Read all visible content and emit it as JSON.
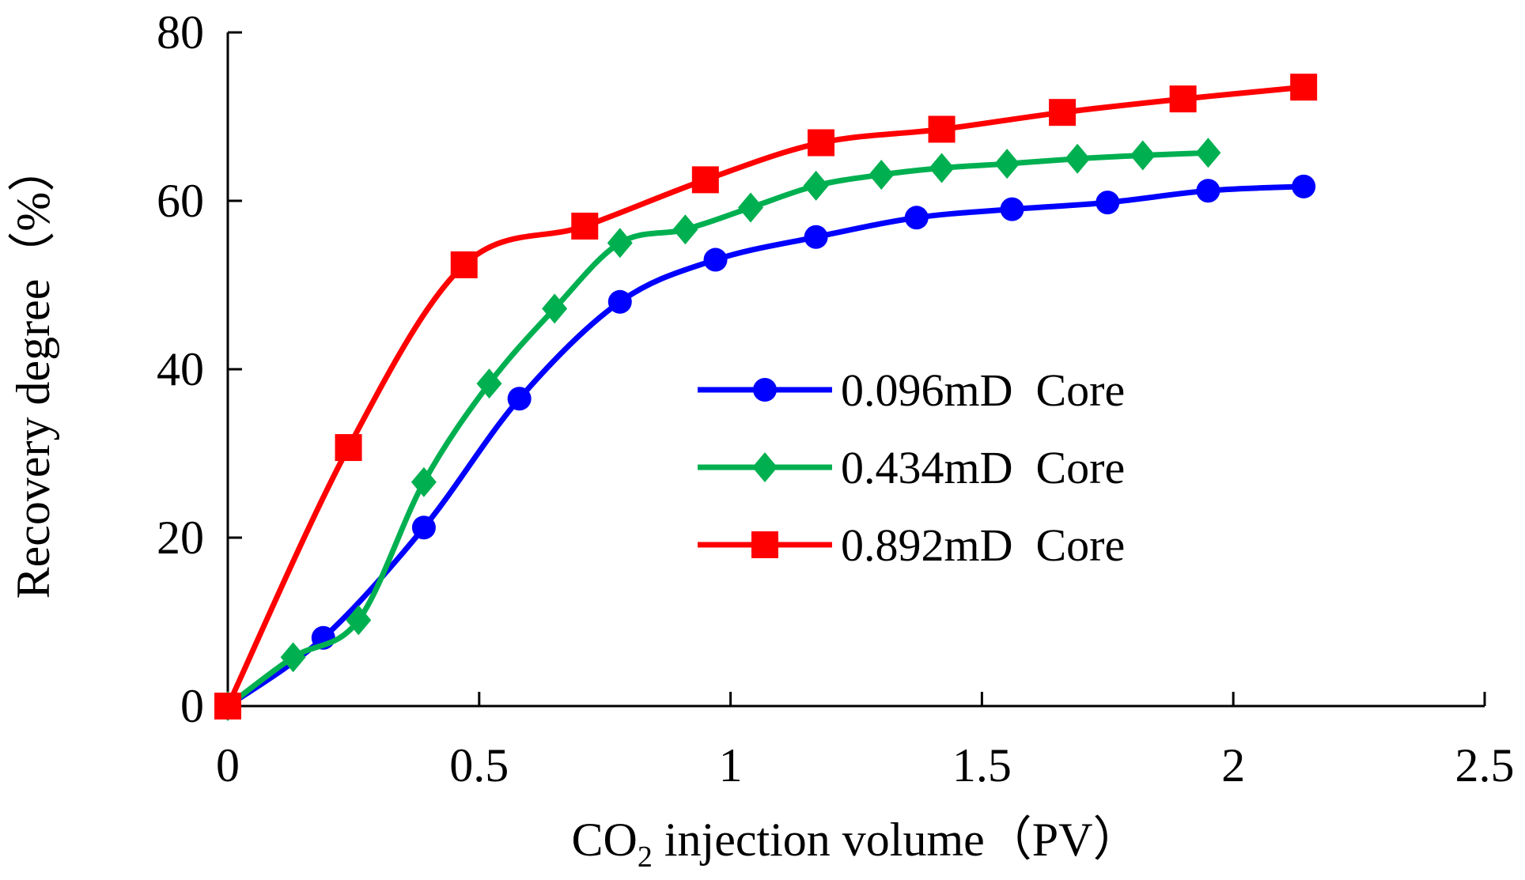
{
  "chart_data": {
    "type": "line",
    "title": "",
    "xlabel": "CO2 injection volume（PV）",
    "xlabel_parts": {
      "main": "CO",
      "sub": "2",
      "rest": " injection volume（PV）"
    },
    "ylabel": "Recovery degree（%）",
    "xlim": [
      0,
      2.5
    ],
    "ylim": [
      0,
      80
    ],
    "xticks": [
      0,
      0.5,
      1,
      1.5,
      2,
      2.5
    ],
    "xtick_labels": [
      "0",
      "0.5",
      "1",
      "1.5",
      "2",
      "2.5"
    ],
    "yticks": [
      0,
      20,
      40,
      60,
      80
    ],
    "ytick_labels": [
      "0",
      "20",
      "40",
      "60",
      "80"
    ],
    "grid": false,
    "legend_position": "center-right",
    "series": [
      {
        "name": "0.096mD  Core",
        "color": "#0000ff",
        "marker": "circle",
        "x": [
          0,
          0.19,
          0.39,
          0.58,
          0.78,
          0.97,
          1.17,
          1.37,
          1.56,
          1.75,
          1.95,
          2.14
        ],
        "y": [
          0,
          8.1,
          21.2,
          36.5,
          48.0,
          53.0,
          55.7,
          58.0,
          59.0,
          59.8,
          61.2,
          61.7
        ]
      },
      {
        "name": "0.434mD  Core",
        "color": "#00b050",
        "marker": "diamond",
        "x": [
          0,
          0.13,
          0.26,
          0.39,
          0.52,
          0.65,
          0.78,
          0.91,
          1.04,
          1.17,
          1.3,
          1.42,
          1.55,
          1.69,
          1.82,
          1.95
        ],
        "y": [
          0,
          5.8,
          10.2,
          26.6,
          38.3,
          47.2,
          55.0,
          56.6,
          59.2,
          61.8,
          63.1,
          63.9,
          64.4,
          65.0,
          65.4,
          65.7
        ]
      },
      {
        "name": "0.892mD  Core",
        "color": "#ff0000",
        "marker": "square",
        "x": [
          0,
          0.24,
          0.47,
          0.71,
          0.95,
          1.18,
          1.42,
          1.66,
          1.9,
          2.14
        ],
        "y": [
          0,
          30.7,
          52.4,
          57.0,
          62.5,
          66.9,
          68.5,
          70.5,
          72.1,
          73.5
        ]
      }
    ]
  }
}
